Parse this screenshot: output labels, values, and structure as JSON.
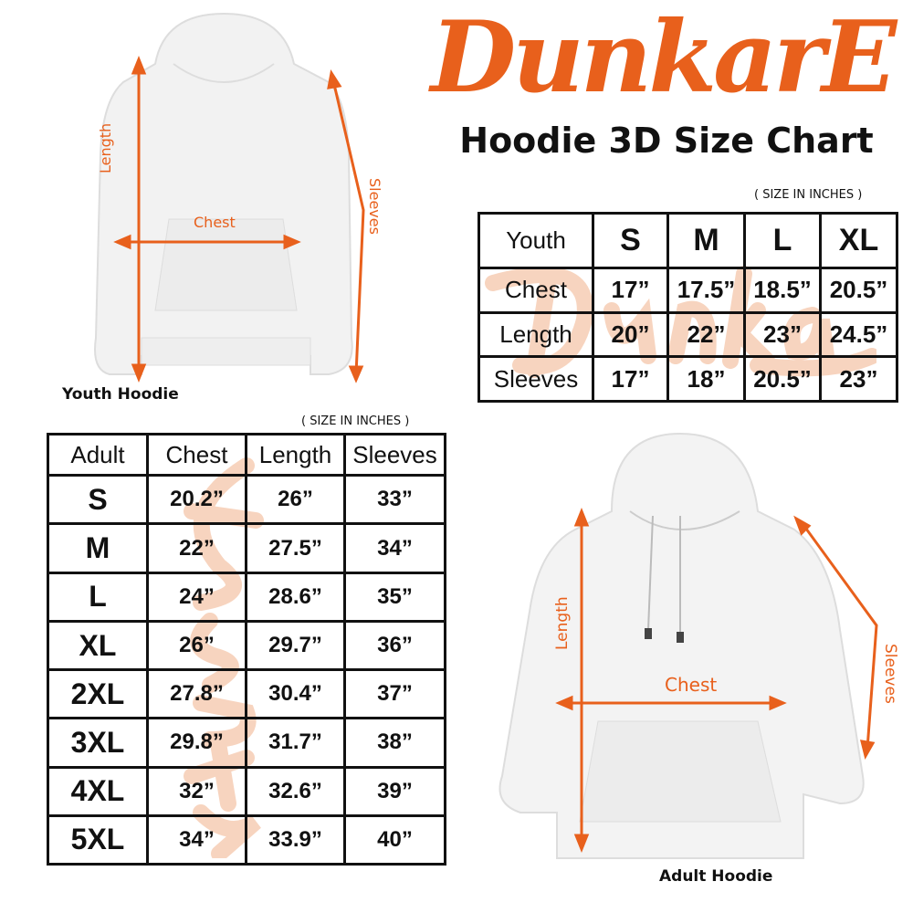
{
  "brand": {
    "logo_text": "DunkarE",
    "color": "#e8601c",
    "watermark_color": "#f3b995"
  },
  "title": "Hoodie 3D Size Chart",
  "units_note": "( SIZE IN INCHES )",
  "youth": {
    "caption": "Youth Hoodie",
    "dims": {
      "length": "Length",
      "chest": "Chest",
      "sleeves": "Sleeves"
    },
    "table": {
      "header": [
        "Youth",
        "S",
        "M",
        "L",
        "XL"
      ],
      "rows": [
        [
          "Chest",
          "17”",
          "17.5”",
          "18.5”",
          "20.5”"
        ],
        [
          "Length",
          "20”",
          "22”",
          "23”",
          "24.5”"
        ],
        [
          "Sleeves",
          "17”",
          "18”",
          "20.5”",
          "23”"
        ]
      ]
    }
  },
  "adult": {
    "caption": "Adult Hoodie",
    "dims": {
      "length": "Length",
      "chest": "Chest",
      "sleeves": "Sleeves"
    },
    "table": {
      "header": [
        "Adult",
        "Chest",
        "Length",
        "Sleeves"
      ],
      "rows": [
        [
          "S",
          "20.2”",
          "26”",
          "33”"
        ],
        [
          "M",
          "22”",
          "27.5”",
          "34”"
        ],
        [
          "L",
          "24”",
          "28.6”",
          "35”"
        ],
        [
          "XL",
          "26”",
          "29.7”",
          "36”"
        ],
        [
          "2XL",
          "27.8”",
          "30.4”",
          "37”"
        ],
        [
          "3XL",
          "29.8”",
          "31.7”",
          "38”"
        ],
        [
          "4XL",
          "32”",
          "32.6”",
          "39”"
        ],
        [
          "5XL",
          "34”",
          "33.9”",
          "40”"
        ]
      ]
    }
  }
}
